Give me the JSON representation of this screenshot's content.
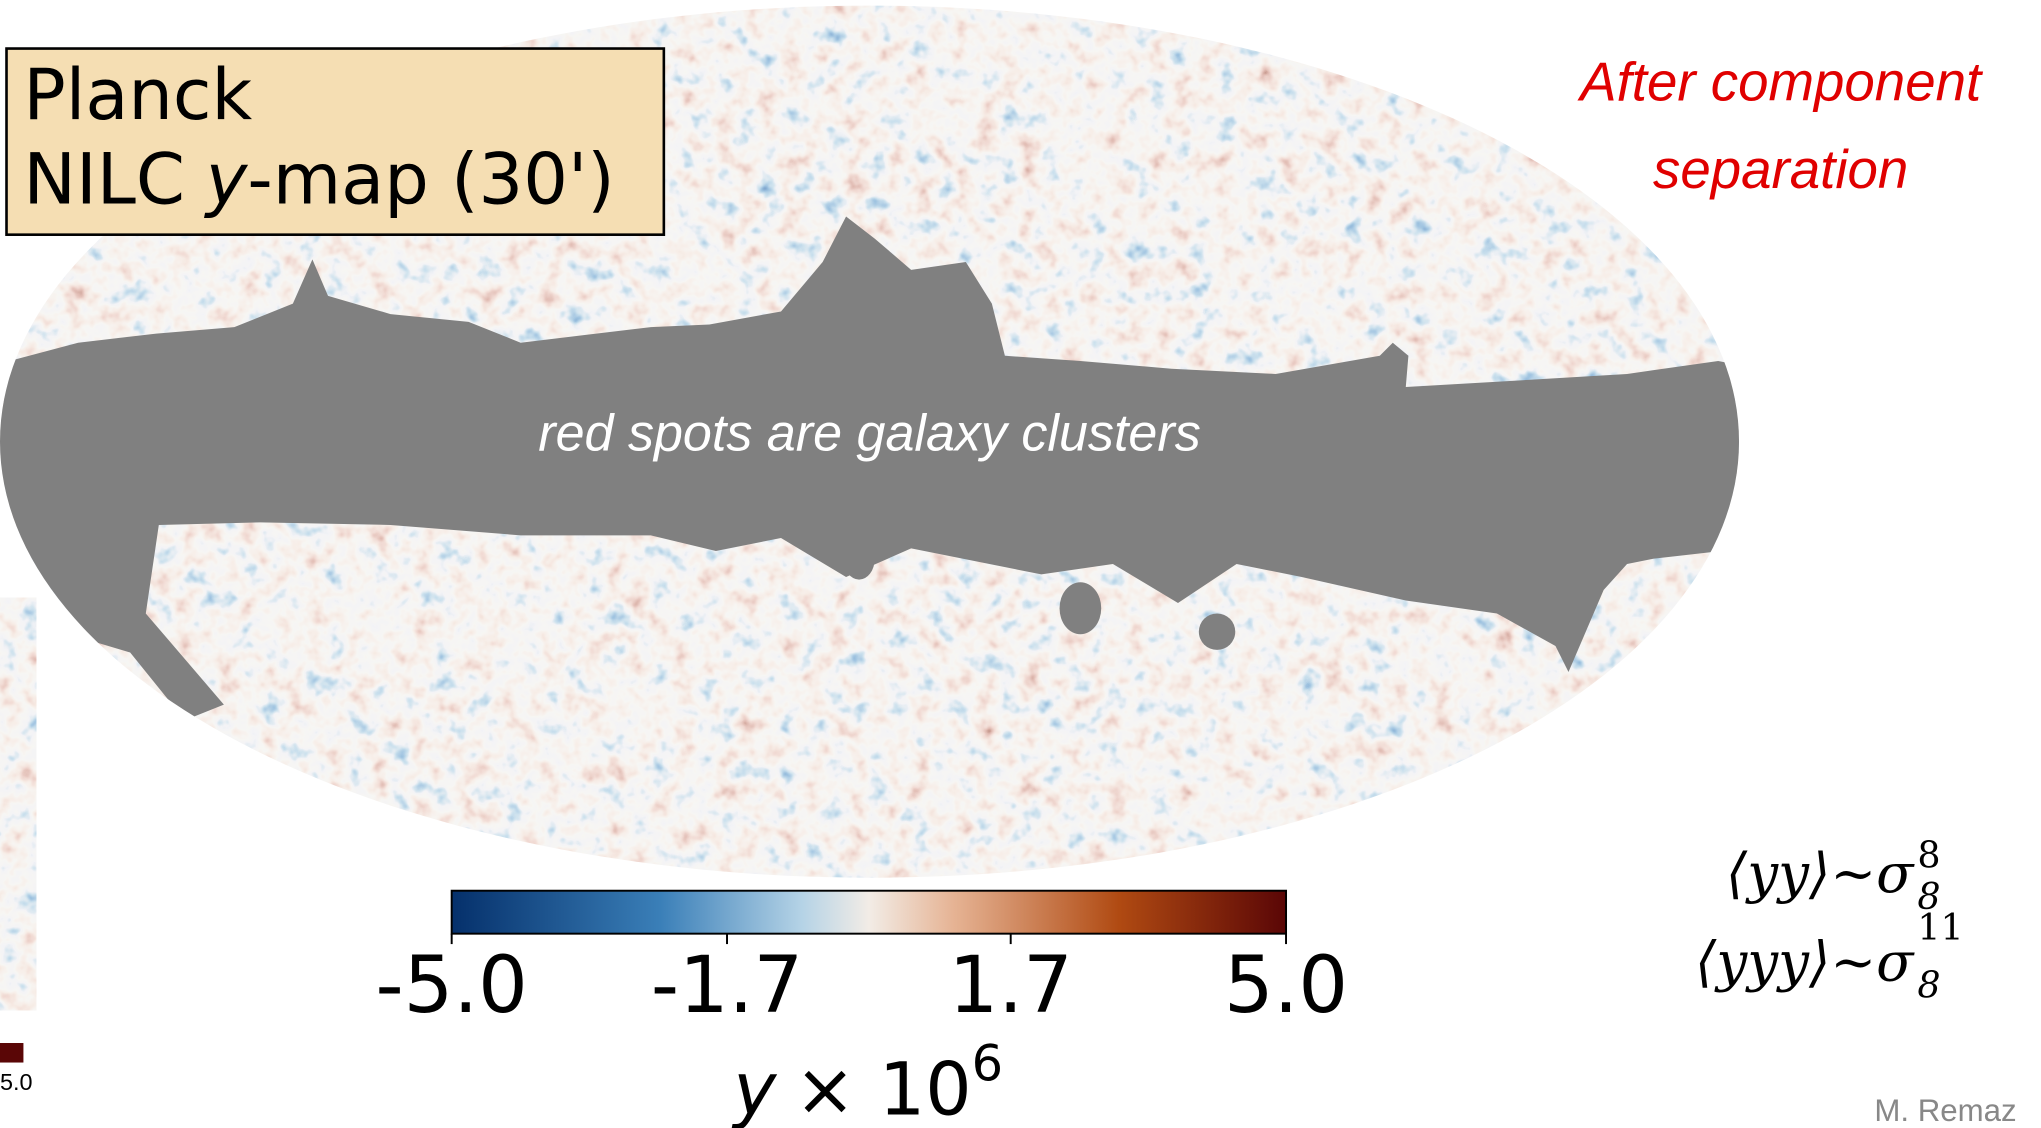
{
  "label_box": {
    "line1": "Planck",
    "line2": [
      "NILC",
      "y",
      "-map (30')"
    ]
  },
  "annotation": [
    "After component",
    "separation"
  ],
  "mask_label": "red spots are galaxy clusters",
  "colorbar": {
    "range": [
      -5,
      5
    ],
    "ticks": [
      {
        "value": -5,
        "label": "-5.0"
      },
      {
        "value": -1.7,
        "label": "-1.7"
      },
      {
        "value": 1.7,
        "label": "1.7"
      },
      {
        "value": 5,
        "label": "5.0"
      }
    ],
    "label": {
      "variable": "y",
      "text": "× 10",
      "exponent": "6"
    }
  },
  "formulas": [
    {
      "expression": "⟨yy⟩~σ",
      "subscript": "8",
      "superscript": "8"
    },
    {
      "expression": "⟨yyy⟩~σ",
      "subscript": "8",
      "superscript": "11"
    }
  ],
  "side_crop": {
    "tick": "5.0"
  },
  "credit": "M. Remaz"
}
